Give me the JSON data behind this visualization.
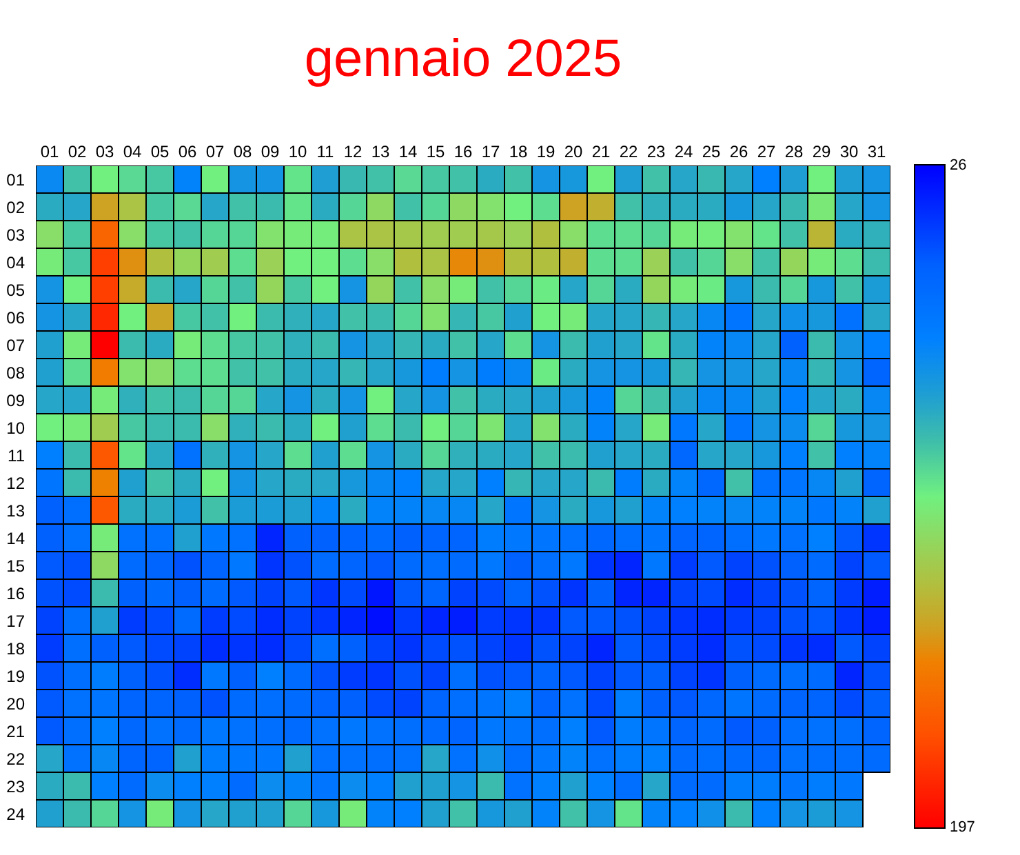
{
  "chart_data": {
    "type": "heatmap",
    "title": "gennaio 2025",
    "categories": [
      "01",
      "02",
      "03",
      "04",
      "05",
      "06",
      "07",
      "08",
      "09",
      "10",
      "11",
      "12",
      "13",
      "14",
      "15",
      "16",
      "17",
      "18",
      "19",
      "20",
      "21",
      "22",
      "23",
      "24",
      "25",
      "26",
      "27",
      "28",
      "29",
      "30",
      "31"
    ],
    "y_categories": [
      "01",
      "02",
      "03",
      "04",
      "05",
      "06",
      "07",
      "08",
      "09",
      "10",
      "11",
      "12",
      "13",
      "14",
      "15",
      "16",
      "17",
      "18",
      "19",
      "20",
      "21",
      "22",
      "23",
      "24"
    ],
    "clim": [
      26,
      197
    ],
    "cticks": [
      26,
      197
    ],
    "cells": [
      [
        75,
        98,
        112,
        105,
        100,
        72,
        112,
        80,
        80,
        108,
        85,
        95,
        98,
        105,
        100,
        98,
        90,
        98,
        80,
        82,
        112,
        85,
        98,
        88,
        95,
        88,
        70,
        85,
        112,
        85,
        80
      ],
      [
        90,
        88,
        145,
        132,
        100,
        105,
        88,
        98,
        96,
        108,
        90,
        104,
        122,
        98,
        104,
        122,
        118,
        112,
        106,
        145,
        140,
        98,
        92,
        90,
        90,
        82,
        88,
        95,
        115,
        88,
        80
      ],
      [
        120,
        100,
        165,
        120,
        100,
        98,
        104,
        104,
        118,
        114,
        113,
        132,
        132,
        130,
        128,
        128,
        130,
        126,
        134,
        120,
        106,
        106,
        104,
        114,
        113,
        118,
        108,
        98,
        138,
        90,
        92
      ],
      [
        114,
        100,
        178,
        150,
        134,
        124,
        128,
        106,
        126,
        112,
        112,
        106,
        120,
        134,
        132,
        152,
        150,
        134,
        134,
        140,
        106,
        106,
        126,
        98,
        104,
        120,
        98,
        124,
        114,
        106,
        96
      ],
      [
        80,
        112,
        178,
        142,
        96,
        88,
        104,
        98,
        124,
        100,
        112,
        80,
        124,
        98,
        120,
        114,
        98,
        104,
        110,
        88,
        104,
        90,
        124,
        114,
        110,
        82,
        96,
        104,
        82,
        98,
        84
      ],
      [
        80,
        88,
        185,
        112,
        144,
        100,
        98,
        112,
        96,
        92,
        88,
        98,
        96,
        104,
        118,
        94,
        100,
        86,
        112,
        114,
        88,
        88,
        94,
        88,
        74,
        64,
        88,
        78,
        82,
        62,
        88
      ],
      [
        86,
        114,
        197,
        96,
        90,
        114,
        106,
        100,
        98,
        92,
        96,
        80,
        88,
        94,
        90,
        98,
        88,
        106,
        80,
        96,
        86,
        88,
        108,
        90,
        72,
        74,
        88,
        52,
        96,
        80,
        70
      ],
      [
        86,
        106,
        156,
        118,
        120,
        106,
        106,
        98,
        98,
        90,
        88,
        94,
        88,
        82,
        68,
        80,
        68,
        74,
        110,
        90,
        80,
        80,
        82,
        94,
        80,
        80,
        88,
        74,
        94,
        80,
        54
      ],
      [
        88,
        88,
        114,
        92,
        98,
        96,
        104,
        104,
        88,
        80,
        90,
        80,
        112,
        88,
        80,
        98,
        90,
        88,
        86,
        82,
        72,
        104,
        98,
        86,
        74,
        74,
        86,
        70,
        88,
        90,
        74
      ],
      [
        112,
        114,
        128,
        100,
        96,
        96,
        120,
        92,
        96,
        90,
        112,
        86,
        106,
        96,
        112,
        104,
        116,
        88,
        118,
        90,
        72,
        88,
        114,
        66,
        88,
        64,
        80,
        76,
        104,
        82,
        80
      ],
      [
        70,
        96,
        170,
        108,
        90,
        62,
        92,
        80,
        88,
        106,
        86,
        106,
        80,
        90,
        104,
        92,
        90,
        88,
        98,
        96,
        86,
        88,
        90,
        56,
        88,
        88,
        82,
        70,
        98,
        70,
        72
      ],
      [
        64,
        96,
        154,
        86,
        98,
        90,
        112,
        80,
        88,
        90,
        88,
        82,
        74,
        70,
        88,
        88,
        70,
        94,
        88,
        88,
        96,
        68,
        90,
        72,
        56,
        98,
        62,
        64,
        74,
        86,
        54
      ],
      [
        52,
        60,
        170,
        90,
        90,
        84,
        98,
        84,
        84,
        86,
        72,
        90,
        72,
        72,
        74,
        74,
        88,
        64,
        80,
        90,
        82,
        86,
        72,
        70,
        72,
        74,
        72,
        72,
        66,
        72,
        86
      ],
      [
        52,
        62,
        114,
        62,
        62,
        86,
        66,
        62,
        36,
        52,
        52,
        54,
        58,
        52,
        54,
        54,
        68,
        66,
        64,
        62,
        56,
        60,
        64,
        54,
        54,
        60,
        66,
        62,
        70,
        50,
        40
      ],
      [
        50,
        48,
        122,
        58,
        54,
        48,
        54,
        66,
        40,
        48,
        58,
        54,
        50,
        58,
        60,
        58,
        66,
        52,
        60,
        66,
        40,
        36,
        66,
        42,
        50,
        44,
        48,
        52,
        58,
        44,
        50
      ],
      [
        48,
        46,
        96,
        52,
        58,
        52,
        58,
        50,
        44,
        50,
        40,
        46,
        32,
        50,
        54,
        44,
        46,
        54,
        48,
        40,
        52,
        36,
        36,
        44,
        46,
        38,
        44,
        48,
        54,
        42,
        34
      ],
      [
        44,
        60,
        86,
        42,
        46,
        58,
        42,
        46,
        38,
        44,
        40,
        36,
        30,
        42,
        36,
        34,
        42,
        40,
        40,
        50,
        50,
        48,
        44,
        40,
        38,
        42,
        44,
        48,
        50,
        40,
        34
      ],
      [
        42,
        60,
        52,
        50,
        46,
        44,
        38,
        40,
        38,
        46,
        60,
        52,
        44,
        40,
        46,
        48,
        44,
        40,
        48,
        44,
        36,
        50,
        46,
        42,
        38,
        48,
        46,
        40,
        38,
        50,
        44
      ],
      [
        48,
        60,
        68,
        52,
        48,
        38,
        66,
        52,
        70,
        58,
        48,
        42,
        40,
        48,
        44,
        60,
        48,
        50,
        54,
        50,
        44,
        50,
        52,
        44,
        40,
        52,
        58,
        60,
        58,
        36,
        48
      ],
      [
        50,
        62,
        64,
        54,
        54,
        52,
        48,
        58,
        60,
        58,
        54,
        52,
        46,
        44,
        54,
        60,
        64,
        70,
        54,
        62,
        46,
        68,
        52,
        50,
        56,
        64,
        58,
        54,
        54,
        46,
        52
      ],
      [
        50,
        60,
        70,
        56,
        62,
        58,
        66,
        62,
        60,
        58,
        62,
        66,
        62,
        60,
        58,
        54,
        66,
        64,
        60,
        70,
        50,
        68,
        64,
        54,
        58,
        50,
        52,
        60,
        62,
        60,
        54
      ],
      [
        88,
        62,
        74,
        54,
        54,
        86,
        68,
        66,
        66,
        86,
        62,
        62,
        60,
        62,
        88,
        62,
        78,
        60,
        66,
        72,
        62,
        68,
        70,
        58,
        60,
        58,
        56,
        62,
        60,
        60,
        58
      ],
      [
        90,
        96,
        70,
        58,
        76,
        70,
        70,
        58,
        76,
        72,
        64,
        76,
        70,
        86,
        86,
        80,
        96,
        62,
        70,
        86,
        70,
        60,
        88,
        58,
        58,
        68,
        68,
        64,
        68,
        66,
        null
      ],
      [
        86,
        96,
        104,
        80,
        114,
        80,
        88,
        86,
        86,
        104,
        82,
        114,
        72,
        70,
        86,
        98,
        82,
        86,
        72,
        98,
        80,
        108,
        72,
        70,
        78,
        96,
        70,
        80,
        84,
        80,
        null
      ]
    ]
  }
}
